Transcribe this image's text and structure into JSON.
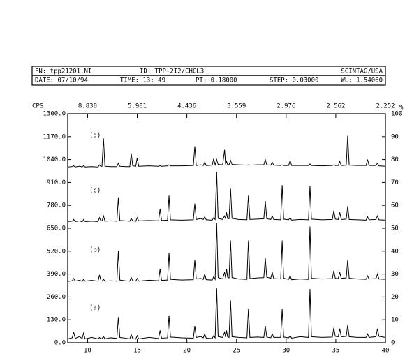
{
  "chart_data": {
    "type": "line",
    "header": {
      "file": "FN: tpp21201.NI",
      "id": "ID: TPP+2I2/CHCL3",
      "vendor": "SCINTAG/USA",
      "date": "DATE: 07/10/94",
      "time": "TIME: 13: 49",
      "pt": "PT: 0.18000",
      "step": "STEP: 0.03000",
      "wl": "WL: 1.54060"
    },
    "ylabel": "CPS",
    "y2label": "%",
    "x": [
      8,
      8.45,
      8.6,
      8.75,
      9.2,
      9.45,
      9.6,
      9.75,
      10.4,
      11.05,
      11.2,
      11.35,
      11.45,
      11.6,
      11.75,
      12.3,
      12.95,
      13.1,
      13.25,
      13.8,
      14.25,
      14.4,
      14.55,
      14.85,
      15.0,
      15.15,
      16.2,
      17.15,
      17.3,
      17.45,
      18.05,
      18.2,
      18.35,
      19.5,
      20.65,
      20.8,
      20.95,
      21.4,
      21.65,
      21.8,
      21.95,
      22.55,
      22.7,
      22.85,
      23.0,
      23.15,
      23.6,
      23.8,
      23.9,
      24.0,
      24.1,
      24.25,
      24.4,
      24.55,
      25.2,
      26.05,
      26.2,
      26.35,
      27.1,
      27.75,
      27.9,
      28.05,
      28.45,
      28.6,
      28.75,
      29.45,
      29.6,
      29.75,
      30.25,
      30.4,
      30.55,
      31.4,
      32.25,
      32.4,
      32.55,
      33.6,
      34.65,
      34.8,
      34.95,
      35.25,
      35.4,
      35.55,
      36.05,
      36.2,
      36.35,
      37.2,
      38.05,
      38.2,
      38.35,
      39.05,
      39.2,
      39.35,
      40
    ],
    "series": [
      {
        "name": "(a)",
        "color": "#000000",
        "values": [
          22,
          28,
          60,
          25,
          35,
          24,
          55,
          22,
          30,
          22,
          30,
          20,
          24,
          35,
          22,
          28,
          25,
          145,
          30,
          26,
          22,
          45,
          24,
          20,
          40,
          22,
          30,
          24,
          70,
          26,
          28,
          155,
          32,
          28,
          26,
          95,
          30,
          35,
          28,
          50,
          26,
          24,
          40,
          28,
          310,
          35,
          30,
          60,
          32,
          70,
          34,
          30,
          240,
          34,
          30,
          28,
          190,
          30,
          32,
          30,
          95,
          32,
          28,
          50,
          30,
          30,
          190,
          32,
          28,
          40,
          26,
          34,
          30,
          305,
          34,
          30,
          32,
          85,
          36,
          34,
          80,
          34,
          36,
          100,
          34,
          30,
          30,
          50,
          30,
          34,
          80,
          36,
          30
        ]
      },
      {
        "name": "(b)",
        "color": "#000000",
        "values": [
          348,
          352,
          365,
          350,
          355,
          348,
          360,
          350,
          354,
          350,
          385,
          352,
          350,
          360,
          350,
          352,
          350,
          520,
          356,
          352,
          350,
          370,
          352,
          350,
          365,
          350,
          355,
          352,
          420,
          354,
          356,
          510,
          360,
          356,
          358,
          470,
          362,
          365,
          360,
          390,
          358,
          356,
          375,
          360,
          680,
          370,
          362,
          400,
          368,
          420,
          372,
          368,
          580,
          370,
          362,
          360,
          580,
          364,
          368,
          370,
          480,
          372,
          366,
          400,
          364,
          362,
          580,
          366,
          360,
          380,
          358,
          362,
          360,
          660,
          366,
          362,
          364,
          410,
          366,
          364,
          400,
          366,
          368,
          470,
          366,
          362,
          360,
          380,
          362,
          364,
          390,
          362,
          360
        ]
      },
      {
        "name": "(c)",
        "color": "#000000",
        "values": [
          688,
          690,
          700,
          688,
          692,
          686,
          700,
          688,
          690,
          688,
          710,
          690,
          692,
          720,
          690,
          692,
          690,
          825,
          694,
          692,
          690,
          705,
          692,
          690,
          710,
          692,
          694,
          692,
          760,
          694,
          696,
          835,
          698,
          696,
          698,
          790,
          700,
          705,
          700,
          715,
          698,
          696,
          710,
          700,
          970,
          706,
          700,
          720,
          704,
          740,
          706,
          704,
          875,
          706,
          700,
          698,
          835,
          700,
          702,
          704,
          805,
          704,
          700,
          720,
          700,
          698,
          895,
          702,
          698,
          710,
          696,
          700,
          698,
          890,
          702,
          698,
          700,
          750,
          702,
          700,
          740,
          700,
          702,
          775,
          700,
          698,
          696,
          715,
          698,
          700,
          720,
          698,
          696
        ]
      },
      {
        "name": "(d)",
        "color": "#000000",
        "values": [
          998,
          1000,
          1005,
          998,
          1002,
          998,
          1005,
          998,
          1000,
          998,
          1010,
          1000,
          1002,
          1160,
          1002,
          1000,
          1000,
          1020,
          1002,
          1000,
          1000,
          1075,
          1004,
          1002,
          1050,
          1002,
          1004,
          1002,
          1005,
          1002,
          1004,
          1010,
          1004,
          1004,
          1006,
          1115,
          1006,
          1010,
          1006,
          1025,
          1006,
          1008,
          1045,
          1010,
          1040,
          1012,
          1010,
          1095,
          1012,
          1030,
          1012,
          1010,
          1035,
          1012,
          1010,
          1008,
          1010,
          1008,
          1010,
          1010,
          1040,
          1010,
          1008,
          1025,
          1008,
          1006,
          1010,
          1006,
          1006,
          1035,
          1006,
          1006,
          1006,
          1015,
          1006,
          1004,
          1006,
          1010,
          1006,
          1006,
          1030,
          1006,
          1008,
          1175,
          1008,
          1006,
          1006,
          1040,
          1006,
          1006,
          1020,
          1004,
          1002
        ]
      }
    ],
    "xlim": [
      8,
      40
    ],
    "xticks": [
      10,
      15,
      20,
      25,
      30,
      35,
      40
    ],
    "x2ticks": [
      {
        "value": 10,
        "label": "8.838"
      },
      {
        "value": 15,
        "label": "5.901"
      },
      {
        "value": 20,
        "label": "4.436"
      },
      {
        "value": 25,
        "label": "3.559"
      },
      {
        "value": 30,
        "label": "2.976"
      },
      {
        "value": 35,
        "label": "2.562"
      },
      {
        "value": 40,
        "label": "2.252"
      }
    ],
    "ylim": [
      0,
      1300
    ],
    "yticks": [
      {
        "value": 0,
        "label": "0.0"
      },
      {
        "value": 130,
        "label": "130.0"
      },
      {
        "value": 260,
        "label": "260.0"
      },
      {
        "value": 390,
        "label": "390.0"
      },
      {
        "value": 520,
        "label": "520.0"
      },
      {
        "value": 650,
        "label": "650.0"
      },
      {
        "value": 780,
        "label": "780.0"
      },
      {
        "value": 910,
        "label": "910.0"
      },
      {
        "value": 1040,
        "label": "1040.0"
      },
      {
        "value": 1170,
        "label": "1170.0"
      },
      {
        "value": 1300,
        "label": "1300.0"
      }
    ],
    "y2lim": [
      0,
      100
    ],
    "y2ticks": [
      0,
      10,
      20,
      30,
      40,
      50,
      60,
      70,
      80,
      90,
      100
    ],
    "grid": false
  }
}
